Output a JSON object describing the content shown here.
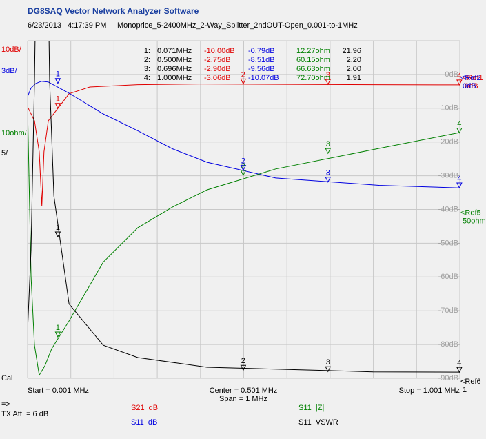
{
  "header": {
    "title": "DG8SAQ Vector Network Analyzer Software",
    "timestamp": "6/23/2013   4:17:39 PM",
    "filename": "Monoprice_5-2400MHz_2-Way_Splitter_2ndOUT-Open_0.001-to-1MHz"
  },
  "chart_data": {
    "type": "line",
    "xlim": [
      0.001,
      1.001
    ],
    "start_label": "Start = 0.001 MHz",
    "center_label": "Center = 0.501 MHz",
    "span_label": "Span = 1 MHz",
    "stop_label": "Stop = 1.001 MHz",
    "yticks": [
      {
        "value": 0,
        "label": "0dB"
      },
      {
        "value": -10,
        "label": "-10dB"
      },
      {
        "value": -20,
        "label": "-20dB"
      },
      {
        "value": -30,
        "label": "-30dB"
      },
      {
        "value": -40,
        "label": "-40dB"
      },
      {
        "value": -50,
        "label": "-50dB"
      },
      {
        "value": -60,
        "label": "-60dB"
      },
      {
        "value": -70,
        "label": "-70dB"
      },
      {
        "value": -80,
        "label": "-80dB"
      },
      {
        "value": -90,
        "label": "-90dB"
      }
    ],
    "series": [
      {
        "name": "S21  dB",
        "color": "#e00000",
        "scale": {
          "value": 10,
          "label": "10dB/"
        },
        "ref_name": "<Ref1",
        "ref": {
          "value": 0,
          "label": "0dB"
        },
        "x": [
          0.001,
          0.017,
          0.028,
          0.034,
          0.039,
          0.049,
          0.097,
          0.145,
          0.256,
          0.4,
          0.8,
          1.001
        ],
        "values": [
          -9.6,
          -13.7,
          -22.9,
          -38.9,
          -22.9,
          -13.7,
          -5.7,
          -3.7,
          -3.0,
          -2.8,
          -3.0,
          -3.07
        ]
      },
      {
        "name": "S11  dB",
        "color": "#0000e0",
        "scale": {
          "value": 3,
          "label": "3dB/"
        },
        "ref_name": "<Ref2",
        "ref": {
          "value": 0,
          "label": "0dB"
        },
        "x": [
          0.001,
          0.009,
          0.02,
          0.033,
          0.049,
          0.097,
          0.176,
          0.256,
          0.336,
          0.416,
          0.575,
          0.814,
          1.001
        ],
        "values": [
          -1.96,
          -1.2,
          -0.8,
          -0.6,
          -0.67,
          -1.66,
          -3.5,
          -5.0,
          -6.6,
          -7.8,
          -9.2,
          -9.85,
          -10.08
        ]
      },
      {
        "name": "S11  |Z|",
        "color": "#008000",
        "scale": {
          "value": 10,
          "label": "10ohm/"
        },
        "ref_name": "<Ref5",
        "ref": {
          "value": 50,
          "label": "50ohm"
        },
        "x": [
          0.001,
          0.009,
          0.017,
          0.028,
          0.041,
          0.057,
          0.097,
          0.176,
          0.256,
          0.336,
          0.416,
          0.575,
          0.814,
          1.001
        ],
        "values": [
          80.2,
          30.3,
          9.8,
          0.9,
          3.7,
          8.8,
          17.0,
          34.4,
          44.6,
          50.7,
          55.8,
          62.0,
          68.1,
          72.8
        ]
      },
      {
        "name": "S11  VSWR",
        "color": "#000000",
        "scale": {
          "value": 5,
          "label": "5/"
        },
        "ref_name": "<Ref6",
        "ref": 1,
        "x": [
          0.001,
          0.009,
          0.017,
          0.025,
          0.034,
          0.044,
          0.052,
          0.062,
          0.097,
          0.176,
          0.256,
          0.416,
          0.8,
          1.001
        ],
        "values": [
          8,
          20,
          45,
          80,
          150,
          80,
          45,
          28,
          12.0,
          5.9,
          4.07,
          2.64,
          1.95,
          1.91
        ]
      }
    ],
    "markers": [
      {
        "id": "1",
        "label": "1:",
        "freq": {
          "value": 0.071,
          "label": "0.071MHz"
        },
        "values": [
          {
            "value": -10,
            "label": "-10.00dB"
          },
          {
            "value": -0.79,
            "label": "-0.79dB"
          },
          {
            "value": 12.27,
            "label": "12.27ohm"
          },
          21.96
        ]
      },
      {
        "id": "2",
        "label": "2:",
        "freq": {
          "value": 0.5,
          "label": "0.500MHz"
        },
        "values": [
          {
            "value": -2.75,
            "label": "-2.75dB"
          },
          {
            "value": -8.51,
            "label": "-8.51dB"
          },
          {
            "value": 60.15,
            "label": "60.15ohm"
          },
          {
            "value": 2.2,
            "label": "2.20"
          }
        ]
      },
      {
        "id": "3",
        "label": "3:",
        "freq": {
          "value": 0.696,
          "label": "0.696MHz"
        },
        "values": [
          {
            "value": -2.9,
            "label": "-2.90dB"
          },
          {
            "value": -9.56,
            "label": "-9.56dB"
          },
          {
            "value": 66.63,
            "label": "66.63ohm"
          },
          {
            "value": 2,
            "label": "2.00"
          }
        ]
      },
      {
        "id": "4",
        "label": "4:",
        "freq": {
          "value": 1,
          "label": "1.000MHz"
        },
        "values": [
          {
            "value": -3.06,
            "label": "-3.06dB"
          },
          {
            "value": -10.07,
            "label": "-10.07dB"
          },
          {
            "value": 72.7,
            "label": "72.70ohm"
          },
          1.91
        ]
      }
    ]
  },
  "footer": {
    "cal": "Cal",
    "arrow": "=>",
    "tx_att": "TX Att. = 6 dB"
  }
}
